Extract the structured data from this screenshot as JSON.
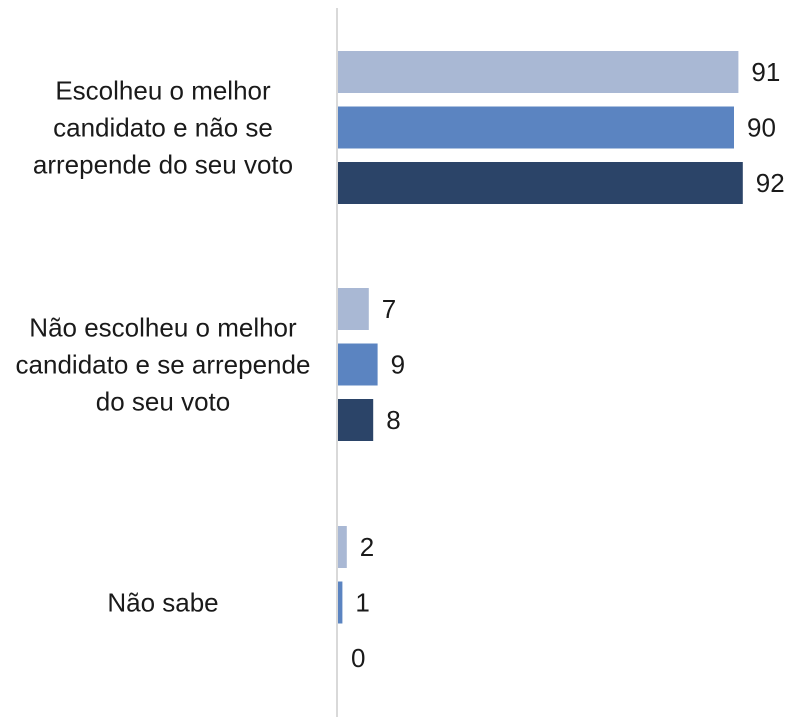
{
  "chart_data": {
    "type": "bar",
    "orientation": "horizontal",
    "categories": [
      "Escolheu o melhor candidato e não se arrepende do seu voto",
      "Não escolheu o melhor candidato e se arrepende do seu voto",
      "Não sabe"
    ],
    "series": [
      {
        "color": "#a9b8d4",
        "values": [
          91,
          7,
          2
        ]
      },
      {
        "color": "#5b84c1",
        "values": [
          90,
          9,
          1
        ]
      },
      {
        "color": "#2b4468",
        "values": [
          92,
          8,
          0
        ]
      }
    ],
    "xlim": [
      0,
      100
    ]
  }
}
